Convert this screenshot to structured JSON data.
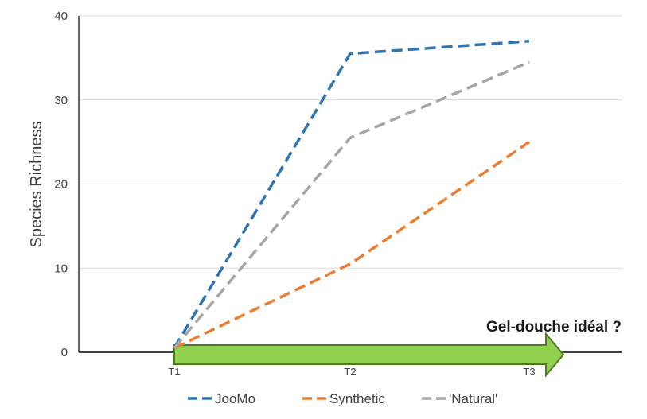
{
  "chart_data": {
    "type": "line",
    "categories": [
      "T1",
      "T2",
      "T3"
    ],
    "ylabel": "Species Richness",
    "ylim": [
      0,
      40
    ],
    "yticks": [
      0,
      10,
      20,
      30,
      40
    ],
    "grid": "horizontal",
    "legend_position": "bottom",
    "series": [
      {
        "name": "JooMo",
        "values": [
          0.5,
          35.5,
          37
        ],
        "color": "#2E75B6",
        "style": "dashed"
      },
      {
        "name": "Synthetic",
        "values": [
          0.5,
          10.5,
          25
        ],
        "color": "#ED7D31",
        "style": "dashed"
      },
      {
        "name": "'Natural'",
        "values": [
          0.5,
          25.5,
          34.5
        ],
        "color": "#A5A5A5",
        "style": "dashed"
      }
    ],
    "annotation": {
      "text": "Gel-douche idéal ?",
      "arrow_color": "#92D050",
      "arrow_border": "#4E7A1F"
    }
  }
}
